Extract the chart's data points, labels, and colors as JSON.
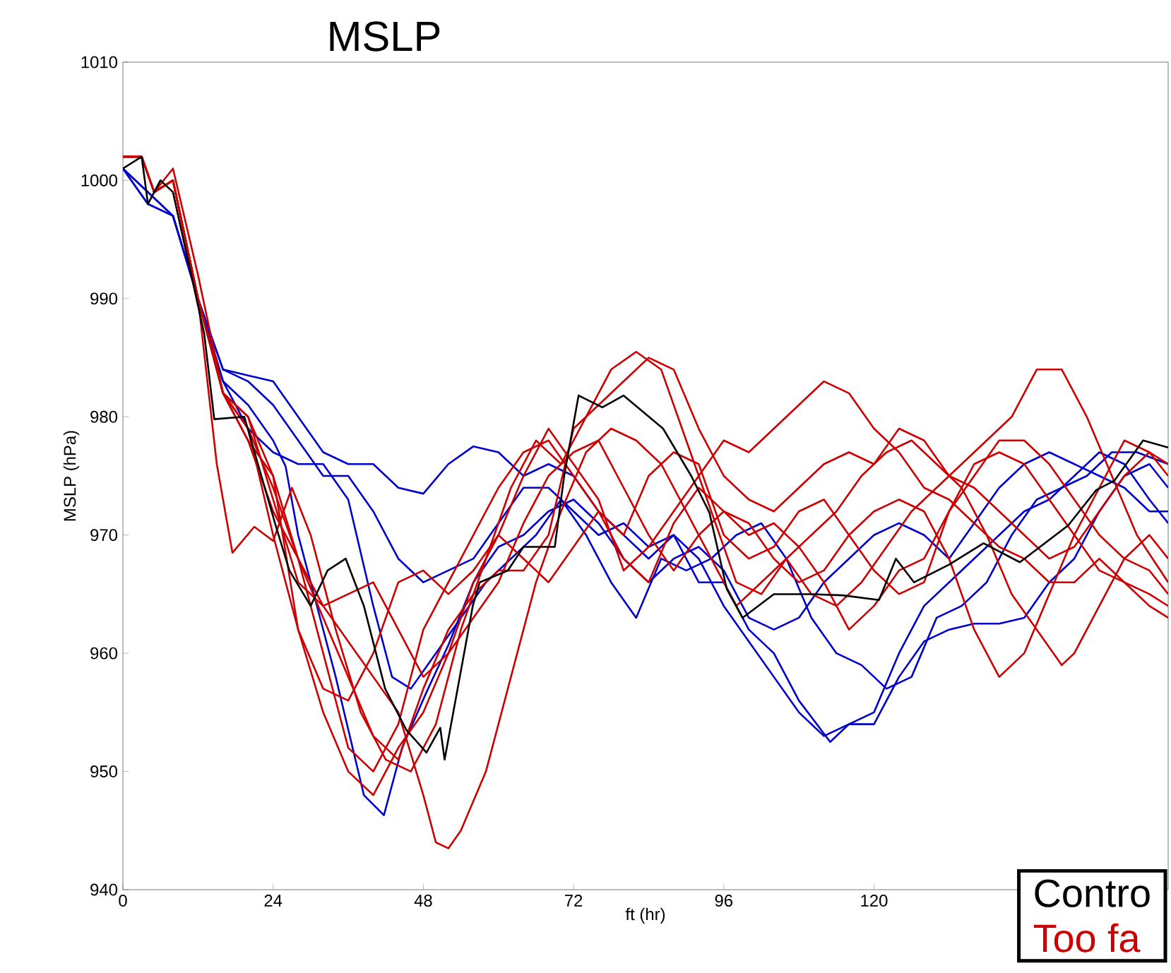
{
  "chart_data": {
    "type": "line",
    "title": "MSLP",
    "xlabel": "ft (hr)",
    "ylabel": "MSLP (hPa)",
    "xlim": [
      0,
      167
    ],
    "ylim": [
      940,
      1010
    ],
    "xticks": [
      0,
      24,
      48,
      72,
      96,
      120
    ],
    "yticks": [
      940,
      950,
      960,
      970,
      980,
      990,
      1000,
      1010
    ],
    "grid": false,
    "legend": "bottom right",
    "marker": "none",
    "line_style": "solid",
    "series": [
      {
        "color": "#0000cc",
        "x": [
          0,
          4,
          8,
          12,
          16,
          20,
          24,
          28,
          32,
          36,
          40,
          44,
          48,
          52,
          56,
          60,
          64,
          68,
          72,
          76,
          80,
          84,
          88,
          92,
          96,
          100,
          104,
          108,
          113,
          116,
          120,
          124,
          128,
          132,
          136,
          140,
          144,
          148,
          152,
          156,
          160,
          164,
          167
        ],
        "values": [
          1001,
          998,
          997,
          990,
          984,
          983.5,
          983,
          980,
          977,
          976,
          976,
          974,
          973.5,
          976,
          977.5,
          977,
          975,
          976,
          975,
          972,
          970,
          968,
          970,
          966,
          966,
          962,
          960,
          956,
          952.5,
          954,
          954,
          958,
          961,
          962,
          962.5,
          962.5,
          963,
          966,
          968,
          972,
          975,
          976,
          974
        ]
      },
      {
        "color": "#0000cc",
        "x": [
          0,
          4,
          8,
          12,
          16,
          20,
          24,
          26,
          28,
          34,
          38.5,
          41.7,
          44.6,
          48.5,
          52,
          56,
          60,
          64,
          68,
          72,
          76,
          80,
          84,
          88,
          92,
          96,
          100,
          104,
          108,
          112,
          116,
          120,
          124,
          128,
          132,
          136,
          140,
          144,
          148,
          152,
          156,
          160,
          164,
          167
        ],
        "values": [
          1001,
          998,
          997,
          990,
          983,
          981,
          978,
          975.8,
          970,
          958,
          948,
          946.3,
          952,
          956.7,
          960.7,
          966,
          969,
          970,
          972,
          973,
          971,
          968,
          966,
          968,
          969,
          967,
          963,
          962,
          963,
          966,
          968,
          970,
          971,
          970,
          968,
          971,
          974,
          976,
          977,
          976,
          975,
          974,
          972,
          972
        ]
      },
      {
        "color": "#0000cc",
        "x": [
          0,
          8,
          12,
          16,
          20,
          24,
          28,
          32,
          36,
          40,
          43,
          46,
          50,
          54,
          58,
          62,
          66,
          70,
          74,
          78,
          82,
          86,
          90,
          94,
          98,
          102,
          106,
          110,
          114,
          118,
          122,
          126,
          130,
          134,
          138,
          142,
          146,
          150,
          154,
          158,
          162,
          167
        ],
        "values": [
          1001,
          997,
          990,
          983,
          979,
          977,
          976,
          976,
          973,
          964,
          958,
          957,
          960,
          963,
          966,
          968,
          970,
          973,
          970,
          966,
          963,
          968,
          967,
          968,
          970,
          971,
          968,
          963,
          960,
          959,
          957,
          958,
          963,
          964,
          966,
          970,
          973,
          974,
          975,
          977,
          977,
          976
        ]
      },
      {
        "color": "#0000cc",
        "x": [
          0,
          8,
          12,
          16,
          20,
          24,
          28,
          32,
          36,
          40,
          44,
          48,
          52,
          56,
          60,
          64,
          68,
          72,
          76,
          80,
          84,
          88,
          92,
          96,
          100,
          104,
          108,
          112,
          116,
          120,
          124,
          128,
          132,
          136,
          140,
          144,
          148,
          152,
          156,
          160,
          164,
          167
        ],
        "values": [
          1001,
          997,
          990,
          984,
          983,
          981,
          978,
          975,
          975,
          972,
          968,
          966,
          967,
          968,
          971,
          974,
          974,
          972,
          970,
          971,
          969,
          970,
          968,
          964,
          961,
          958,
          955,
          953,
          954,
          955,
          960,
          964,
          966,
          968,
          970,
          972,
          973,
          975,
          977,
          976,
          973,
          971
        ]
      },
      {
        "name": "Too fa",
        "color": "#cc0000",
        "x": [
          0,
          3,
          5,
          8,
          12,
          16,
          20,
          24,
          28,
          32,
          36,
          40,
          44,
          48,
          50,
          52,
          54,
          58,
          62,
          66,
          70,
          74,
          78,
          82,
          86,
          90,
          94,
          98,
          102,
          106,
          110,
          114,
          118,
          122,
          126,
          130,
          134,
          138,
          142,
          146,
          150,
          154,
          158,
          162,
          167
        ],
        "values": [
          1002,
          1002,
          999,
          1001,
          992,
          982,
          978,
          972,
          968,
          964,
          961,
          958,
          955,
          948,
          944,
          943.5,
          945,
          950,
          958,
          966,
          972,
          977,
          979,
          978,
          976,
          972,
          968,
          964,
          966,
          968,
          965,
          964,
          966,
          969,
          972,
          974,
          976,
          978,
          980,
          984,
          984,
          980,
          975,
          970,
          966
        ]
      },
      {
        "color": "#cc0000",
        "x": [
          0,
          3,
          5,
          8,
          12,
          15,
          17.5,
          21,
          24,
          27,
          30,
          34,
          38,
          42,
          46,
          50,
          54,
          58,
          62,
          66,
          70,
          74,
          78,
          82,
          86,
          90,
          94,
          98,
          102,
          106,
          110,
          114,
          118,
          122,
          126,
          130,
          134,
          138,
          142,
          146,
          150,
          152,
          156,
          160,
          164,
          167
        ],
        "values": [
          1002,
          1002,
          999,
          1000,
          990,
          976,
          968.5,
          970.7,
          969.5,
          974,
          970,
          962,
          955,
          951,
          950,
          954,
          962,
          968,
          974,
          978,
          976,
          980,
          984,
          985.5,
          984,
          978,
          972,
          966,
          965,
          968,
          970,
          972,
          975,
          977,
          978,
          976,
          974,
          970,
          965,
          962,
          959,
          960,
          964,
          968,
          970,
          968
        ]
      },
      {
        "color": "#cc0000",
        "x": [
          0,
          3,
          5,
          8,
          12,
          16,
          20,
          24,
          28,
          32,
          36,
          40,
          44,
          48,
          52,
          56,
          60,
          64,
          68,
          72,
          76,
          80,
          84,
          88,
          92,
          96,
          100,
          104,
          108,
          112,
          116,
          120,
          124,
          128,
          132,
          136,
          140,
          144,
          148,
          152,
          156,
          160,
          164,
          167
        ],
        "values": [
          1002,
          1002,
          999,
          1000,
          990,
          982,
          978,
          975,
          962,
          955,
          950,
          948,
          952,
          955,
          960,
          966,
          970,
          975,
          979,
          976,
          973,
          967,
          969,
          972,
          975,
          978,
          977,
          979,
          981,
          983,
          982,
          979,
          977,
          974,
          973,
          971,
          969,
          968,
          966,
          966,
          968,
          966,
          965,
          964
        ]
      },
      {
        "color": "#cc0000",
        "x": [
          0,
          3,
          5,
          8,
          12,
          16,
          20,
          24,
          28,
          32,
          36,
          40,
          44,
          48,
          52,
          56,
          60,
          64,
          68,
          72,
          76,
          80,
          84,
          88,
          92,
          96,
          100,
          104,
          108,
          112,
          116,
          120,
          124,
          128,
          132,
          136,
          140,
          144,
          148,
          152,
          156,
          160,
          164,
          167
        ],
        "values": [
          1002,
          1002,
          999,
          1000,
          990,
          982,
          979,
          974,
          968,
          963,
          958,
          953,
          951,
          957,
          962,
          965,
          967,
          967,
          970,
          979,
          981,
          983,
          985,
          984,
          979,
          975,
          973,
          972,
          974,
          976,
          977,
          976,
          979,
          978,
          975,
          974,
          972,
          970,
          968,
          969,
          972,
          975,
          977,
          976
        ]
      },
      {
        "color": "#cc0000",
        "x": [
          0,
          3,
          5,
          8,
          12,
          16,
          20,
          24,
          28,
          32,
          36,
          40,
          44,
          48,
          52,
          56,
          60,
          64,
          68,
          72,
          76,
          80,
          84,
          88,
          92,
          96,
          100,
          104,
          108,
          112,
          116,
          120,
          124,
          128,
          132,
          136,
          140,
          144,
          148,
          152,
          156,
          160,
          164,
          167
        ],
        "values": [
          1002,
          1002,
          999,
          1000,
          990,
          982,
          980,
          973,
          966,
          964,
          965,
          966,
          962,
          958,
          960,
          963,
          966,
          971,
          975,
          977,
          978,
          974,
          970,
          967,
          970,
          972,
          971,
          968,
          966,
          967,
          970,
          972,
          973,
          972,
          968,
          962,
          958,
          960,
          965,
          970,
          974,
          978,
          977,
          975
        ]
      },
      {
        "color": "#cc0000",
        "x": [
          0,
          3,
          5,
          8,
          12,
          16,
          20,
          24,
          28,
          32,
          36,
          40,
          44,
          48,
          52,
          56,
          60,
          64,
          68,
          72,
          76,
          80,
          84,
          88,
          92,
          96,
          100,
          104,
          108,
          112,
          116,
          120,
          124,
          128,
          132,
          136,
          140,
          144,
          148,
          152,
          156,
          160,
          164,
          167
        ],
        "values": [
          1002,
          1002,
          999,
          1000,
          990,
          982,
          979,
          970,
          962,
          957,
          956,
          960,
          966,
          967,
          965,
          967,
          970,
          968,
          966,
          969,
          972,
          970,
          975,
          977,
          976,
          970,
          968,
          969,
          972,
          973,
          970,
          967,
          965,
          966,
          972,
          976,
          977,
          976,
          973,
          970,
          967,
          966,
          964,
          963
        ]
      },
      {
        "color": "#cc0000",
        "x": [
          0,
          3,
          5,
          8,
          12,
          16,
          20,
          24,
          28,
          32,
          36,
          40,
          44,
          48,
          52,
          56,
          60,
          64,
          68,
          72,
          76,
          80,
          84,
          88,
          92,
          96,
          100,
          104,
          108,
          112,
          116,
          120,
          124,
          128,
          132,
          136,
          140,
          144,
          148,
          152,
          156,
          160,
          164,
          167
        ],
        "values": [
          1002,
          1002,
          999,
          1000,
          990,
          982,
          980,
          975,
          968,
          960,
          952,
          950,
          954,
          962,
          966,
          970,
          974,
          977,
          978,
          975,
          972,
          968,
          966,
          971,
          974,
          972,
          970,
          971,
          969,
          966,
          962,
          964,
          967,
          968,
          972,
          975,
          978,
          978,
          976,
          973,
          970,
          968,
          967,
          965
        ]
      },
      {
        "name": "Contro",
        "color": "#000000",
        "x": [
          0,
          3,
          4,
          6,
          8,
          13,
          14.6,
          19.4,
          24.3,
          26.6,
          30,
          32.7,
          35.6,
          38.5,
          41.9,
          45.3,
          48.5,
          50.7,
          51.4,
          55.9,
          57,
          61.5,
          64,
          69,
          70.5,
          72.8,
          76.6,
          80,
          86.3,
          90.8,
          93.7,
          96.5,
          99,
          104,
          110,
          115,
          120.8,
          123.5,
          126.4,
          132,
          137.5,
          143.3,
          151,
          155.5,
          158.4,
          163,
          167
        ],
        "values": [
          1001,
          1002,
          998,
          1000,
          999,
          987,
          979.8,
          980,
          971,
          967,
          964,
          967,
          968,
          964,
          957,
          953.5,
          951.6,
          953.7,
          951,
          964,
          966,
          967,
          969,
          969,
          975,
          981.8,
          980.8,
          981.8,
          979,
          975,
          971.9,
          965.4,
          963,
          965,
          965,
          964.9,
          964.5,
          968,
          966,
          967.5,
          969.3,
          967.7,
          970.8,
          973.8,
          974.6,
          978,
          977.4
        ]
      }
    ]
  }
}
